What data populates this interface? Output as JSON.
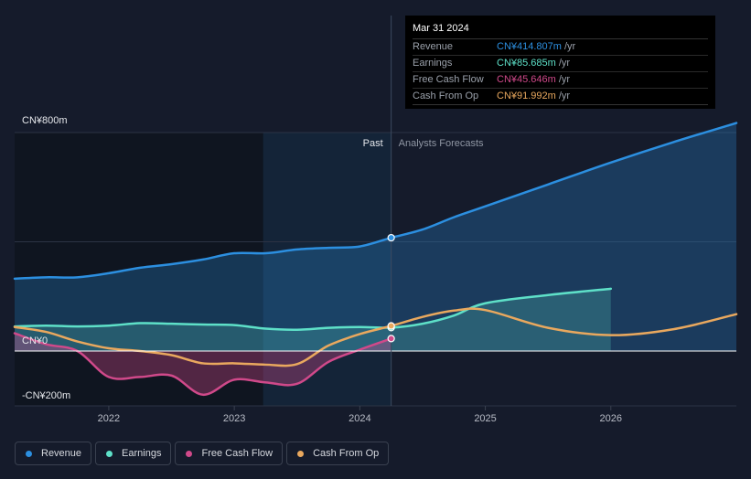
{
  "chart_data": {
    "type": "area",
    "y_unit": "CN¥ m",
    "ylim": [
      -200,
      800
    ],
    "y_tick_labels": [
      {
        "value": 800,
        "label": "CN¥800m"
      },
      {
        "value": 0,
        "label": "CN¥0"
      },
      {
        "value": -200,
        "label": "-CN¥200m"
      }
    ],
    "x_ticks": [
      "2022",
      "2023",
      "2024",
      "2025",
      "2026"
    ],
    "x_range": [
      2021.25,
      2027.0
    ],
    "past_start": 2023.23,
    "divider": 2024.25,
    "period_labels": {
      "past": "Past",
      "forecast": "Analysts Forecasts"
    },
    "series": [
      {
        "name": "Revenue",
        "color": "#2c8fe0",
        "fill": true,
        "points": [
          [
            2021.25,
            265
          ],
          [
            2021.5,
            270
          ],
          [
            2021.75,
            270
          ],
          [
            2022.0,
            285
          ],
          [
            2022.25,
            305
          ],
          [
            2022.5,
            318
          ],
          [
            2022.75,
            335
          ],
          [
            2023.0,
            358
          ],
          [
            2023.25,
            358
          ],
          [
            2023.5,
            372
          ],
          [
            2023.75,
            378
          ],
          [
            2024.0,
            383
          ],
          [
            2024.25,
            414.807
          ],
          [
            2024.5,
            445
          ],
          [
            2024.75,
            490
          ],
          [
            2025.0,
            530
          ],
          [
            2025.5,
            610
          ],
          [
            2026.0,
            690
          ],
          [
            2026.5,
            765
          ],
          [
            2027.0,
            835
          ]
        ]
      },
      {
        "name": "Earnings",
        "color": "#5ee0c8",
        "fill": true,
        "points": [
          [
            2021.25,
            90
          ],
          [
            2021.5,
            93
          ],
          [
            2021.75,
            90
          ],
          [
            2022.0,
            93
          ],
          [
            2022.25,
            102
          ],
          [
            2022.5,
            100
          ],
          [
            2022.75,
            97
          ],
          [
            2023.0,
            95
          ],
          [
            2023.25,
            82
          ],
          [
            2023.5,
            78
          ],
          [
            2023.75,
            85
          ],
          [
            2024.0,
            88
          ],
          [
            2024.25,
            85.685
          ],
          [
            2024.5,
            100
          ],
          [
            2024.75,
            130
          ],
          [
            2025.0,
            175
          ],
          [
            2025.5,
            205
          ],
          [
            2026.0,
            228
          ]
        ]
      },
      {
        "name": "Free Cash Flow",
        "color": "#d0498a",
        "fill": true,
        "points": [
          [
            2021.25,
            65
          ],
          [
            2021.5,
            25
          ],
          [
            2021.75,
            0
          ],
          [
            2022.0,
            -95
          ],
          [
            2022.25,
            -95
          ],
          [
            2022.5,
            -90
          ],
          [
            2022.75,
            -160
          ],
          [
            2023.0,
            -105
          ],
          [
            2023.25,
            -115
          ],
          [
            2023.5,
            -120
          ],
          [
            2023.75,
            -40
          ],
          [
            2024.0,
            5
          ],
          [
            2024.25,
            45.646
          ]
        ]
      },
      {
        "name": "Cash From Op",
        "color": "#e9a85e",
        "fill": false,
        "points": [
          [
            2021.25,
            88
          ],
          [
            2021.5,
            70
          ],
          [
            2021.75,
            35
          ],
          [
            2022.0,
            10
          ],
          [
            2022.25,
            0
          ],
          [
            2022.5,
            -15
          ],
          [
            2022.75,
            -45
          ],
          [
            2023.0,
            -45
          ],
          [
            2023.25,
            -50
          ],
          [
            2023.5,
            -48
          ],
          [
            2023.75,
            20
          ],
          [
            2024.0,
            62
          ],
          [
            2024.25,
            91.992
          ],
          [
            2024.5,
            125
          ],
          [
            2024.75,
            148
          ],
          [
            2025.0,
            150
          ],
          [
            2025.5,
            85
          ],
          [
            2026.0,
            58
          ],
          [
            2026.5,
            80
          ],
          [
            2027.0,
            135
          ]
        ]
      }
    ]
  },
  "tooltip": {
    "date": "Mar 31 2024",
    "rows": [
      {
        "name": "Revenue",
        "value": "CN¥414.807m",
        "unit": "/yr",
        "color": "#2c8fe0"
      },
      {
        "name": "Earnings",
        "value": "CN¥85.685m",
        "unit": "/yr",
        "color": "#5ee0c8"
      },
      {
        "name": "Free Cash Flow",
        "value": "CN¥45.646m",
        "unit": "/yr",
        "color": "#d0498a"
      },
      {
        "name": "Cash From Op",
        "value": "CN¥91.992m",
        "unit": "/yr",
        "color": "#e9a85e"
      }
    ]
  },
  "legend": [
    {
      "label": "Revenue",
      "color": "#2c8fe0"
    },
    {
      "label": "Earnings",
      "color": "#5ee0c8"
    },
    {
      "label": "Free Cash Flow",
      "color": "#d0498a"
    },
    {
      "label": "Cash From Op",
      "color": "#e9a85e"
    }
  ]
}
